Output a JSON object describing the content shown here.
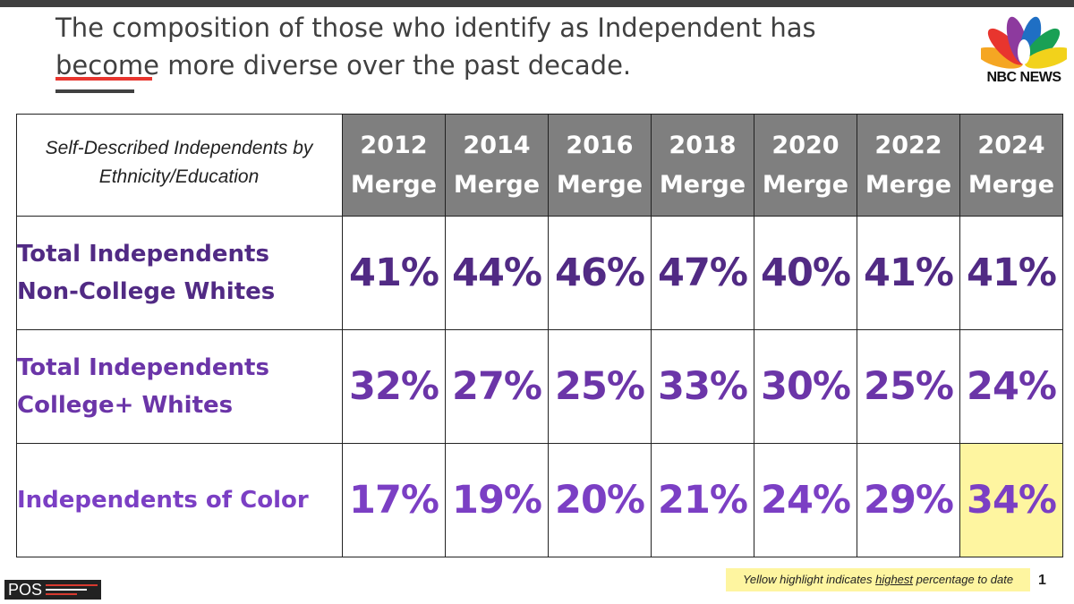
{
  "header": {
    "title_line1": "The composition of those who identify as Independent has",
    "title_line2": "become more diverse over the past decade.",
    "logo_text": "NBC NEWS"
  },
  "chart_data": {
    "type": "table",
    "label_line1": "Self-Described Independents by",
    "label_line2": "Ethnicity/Education",
    "columns": [
      {
        "year": "2012",
        "suffix": "Merge"
      },
      {
        "year": "2014",
        "suffix": "Merge"
      },
      {
        "year": "2016",
        "suffix": "Merge"
      },
      {
        "year": "2018",
        "suffix": "Merge"
      },
      {
        "year": "2020",
        "suffix": "Merge"
      },
      {
        "year": "2022",
        "suffix": "Merge"
      },
      {
        "year": "2024",
        "suffix": "Merge"
      }
    ],
    "rows": [
      {
        "label_lines": [
          "Total Independents",
          "Non-College Whites"
        ],
        "values": [
          "41%",
          "44%",
          "46%",
          "47%",
          "40%",
          "41%",
          "41%"
        ]
      },
      {
        "label_lines": [
          "Total Independents",
          "College+ Whites"
        ],
        "values": [
          "32%",
          "27%",
          "25%",
          "33%",
          "30%",
          "25%",
          "24%"
        ]
      },
      {
        "label_lines": [
          "Independents of Color"
        ],
        "values": [
          "17%",
          "19%",
          "20%",
          "21%",
          "24%",
          "29%",
          "34%"
        ]
      }
    ],
    "highlight": {
      "row": 2,
      "col": 6,
      "color": "#fef5a0"
    }
  },
  "footer": {
    "pos_logo_text": "POS",
    "note_before": "Yellow highlight indicates ",
    "note_emph": "highest",
    "note_after": " percentage to date",
    "page_number": "1"
  },
  "colors": {
    "header_fill": "#7f7f7f",
    "accent_red": "#e8352e",
    "row_colors": [
      "#512a84",
      "#6b35a8",
      "#7b3fc4"
    ],
    "highlight": "#fef5a0"
  }
}
